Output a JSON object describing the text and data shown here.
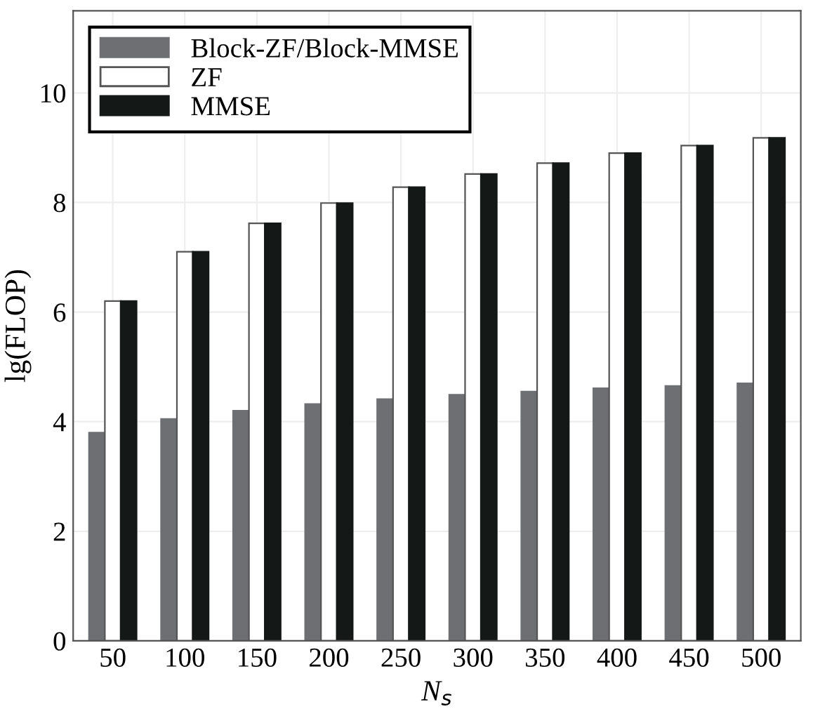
{
  "chart_data": {
    "type": "bar",
    "xlabel": "N$_{s}$",
    "ylabel": "lg(FLOP)",
    "categories": [
      "50",
      "100",
      "150",
      "200",
      "250",
      "300",
      "350",
      "400",
      "450",
      "500"
    ],
    "series": [
      {
        "name": "Block-ZF/Block-MMSE",
        "color": "#6e6f73",
        "values": [
          3.8,
          4.05,
          4.2,
          4.32,
          4.41,
          4.49,
          4.55,
          4.61,
          4.65,
          4.7
        ]
      },
      {
        "name": "ZF",
        "color": "#ffffff",
        "values": [
          6.2,
          7.1,
          7.62,
          7.99,
          8.28,
          8.52,
          8.72,
          8.9,
          9.04,
          9.18
        ]
      },
      {
        "name": "MMSE",
        "color": "#141816",
        "values": [
          6.2,
          7.1,
          7.62,
          7.99,
          8.28,
          8.52,
          8.72,
          8.9,
          9.04,
          9.18
        ]
      }
    ],
    "ylim": [
      0,
      11.5
    ],
    "yticks": [
      0,
      2,
      4,
      6,
      8,
      10
    ],
    "grid": true,
    "legend": "top left"
  }
}
